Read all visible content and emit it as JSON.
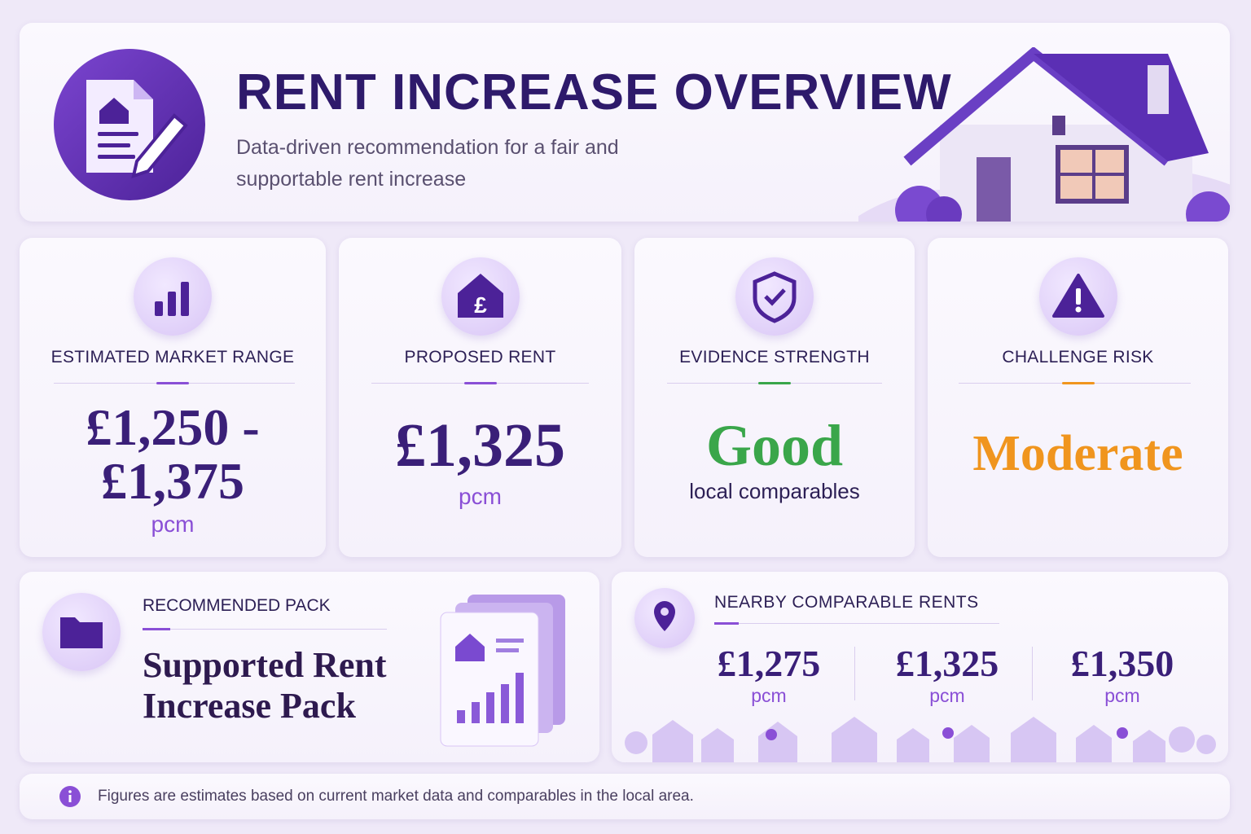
{
  "header": {
    "title": "RENT INCREASE OVERVIEW",
    "subtitle": "Data-driven recommendation for a fair and supportable rent increase"
  },
  "cards": [
    {
      "label": "ESTIMATED MARKET RANGE",
      "value_lines": [
        "£1,250 -",
        "£1,375"
      ],
      "unit": "pcm"
    },
    {
      "label": "PROPOSED RENT",
      "value": "£1,325",
      "unit": "pcm"
    },
    {
      "label": "EVIDENCE STRENGTH",
      "value": "Good",
      "note": "local comparables"
    },
    {
      "label": "CHALLENGE RISK",
      "value": "Moderate"
    }
  ],
  "pack": {
    "label": "RECOMMENDED PACK",
    "title": "Supported Rent Increase Pack"
  },
  "comparables": {
    "label": "NEARBY COMPARABLE RENTS",
    "rents": [
      {
        "value": "£1,275",
        "unit": "pcm"
      },
      {
        "value": "£1,325",
        "unit": "pcm"
      },
      {
        "value": "£1,350",
        "unit": "pcm"
      }
    ]
  },
  "footer": {
    "note": "Figures are estimates based on current market data and comparables in the local area."
  }
}
